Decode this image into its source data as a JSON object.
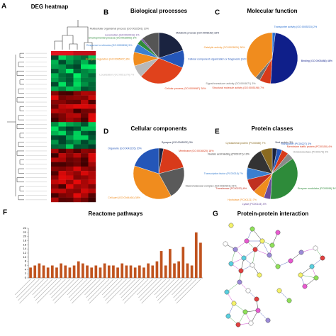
{
  "panel_letters": [
    "A",
    "B",
    "C",
    "D",
    "E",
    "F",
    "G"
  ],
  "heatmap": {
    "title": "DEG heatmap"
  },
  "network": {
    "title": "Protein-protein interaction"
  },
  "chart_data": [
    {
      "type": "pie",
      "title": "Biological processes",
      "categories": [
        "Metabolic process (GO:0008152)",
        "Cellular component organization or biogenesis (GO:0071840)",
        "Cellular process (GO:0009987)",
        "Localization (GO:0051179)",
        "Biological regulation (GO:0065007)",
        "Response to stimulus (GO:0050896)",
        "Developmental process (GO:0032502)",
        "Locomotion (GO:0040011)",
        "Multicellular organismal process (GO:0032501)"
      ],
      "values": [
        18,
        10,
        28,
        7,
        8,
        5,
        3,
        1,
        10
      ],
      "value_labels": [
        "18%",
        "10%",
        "28%",
        "7%",
        "8%",
        "5%",
        "3%",
        "1%",
        "10%"
      ],
      "colors": [
        "#1a2340",
        "#2456b8",
        "#e0421c",
        "#b8b8b8",
        "#f08c1e",
        "#3a7fd0",
        "#2e8b3a",
        "#6b4b9a",
        "#555555"
      ]
    },
    {
      "type": "pie",
      "title": "Molecular function",
      "categories": [
        "Transporter activity (GO:0005215)",
        "Binding (GO:0005488)",
        "Structural molecule activity (GO:0005198)",
        "Signal transducer activity (GO:0004871)",
        "Catalytic activity (GO:0003824)"
      ],
      "values": [
        2,
        48,
        7,
        3,
        38
      ],
      "value_labels": [
        "2%",
        "48%",
        "7%",
        "3%",
        "38%"
      ],
      "colors": [
        "#2a6fd0",
        "#0f1f8a",
        "#d83a1a",
        "#707070",
        "#f08c1e"
      ]
    },
    {
      "type": "pie",
      "title": "Cellular components",
      "categories": [
        "Synapse (GO:0045202)",
        "Membrane (GO:0016020)",
        "Macromolecular complex (GO:0032991)",
        "Cell part (GO:0044464)",
        "Organelle (GO:0043226)"
      ],
      "values": [
        3,
        18,
        21,
        38,
        20
      ],
      "value_labels": [
        "3%",
        "18%",
        "21%",
        "38%",
        "20%"
      ],
      "colors": [
        "#1a2340",
        "#d83a1a",
        "#5a5a5a",
        "#f08c1e",
        "#2456b8"
      ]
    },
    {
      "type": "pie",
      "title": "Protein classes",
      "categories": [
        "Viral protein",
        "Transporter (PC00227)",
        "Membrane traffic protein (PC00150)",
        "Oxidoreductase (PC00176)",
        "Enzyme modulator (PC00095)",
        "Lyase (PC00144)",
        "Hydrolase (PC00121)",
        "Transferase (PC00220)",
        "Transcription factor (PC00218)",
        "Nucleic acid binding (PC00171)",
        "Cytoskeletal protein (PC00085)"
      ],
      "values": [
        3,
        3,
        4,
        4,
        34,
        4,
        7,
        8,
        7,
        13,
        7
      ],
      "value_labels": [
        "3%",
        "3%",
        "4%",
        "4%",
        "34%",
        "4%",
        "7%",
        "8%",
        "7%",
        "13%",
        "7%"
      ],
      "colors": [
        "#1a2340",
        "#2456b8",
        "#d83a1a",
        "#8a8a8a",
        "#2e8b3a",
        "#6b4b9a",
        "#f08c1e",
        "#c03020",
        "#3a7fd0",
        "#333333",
        "#8a6a20"
      ]
    },
    {
      "type": "bar",
      "title": "Reactome pathways",
      "color": "#c0531e",
      "categories": [
        null,
        null,
        null,
        null,
        null,
        null,
        null,
        null,
        null,
        null,
        null,
        null,
        null,
        null,
        null,
        null,
        null,
        null,
        null,
        null,
        null,
        null,
        null,
        null,
        null,
        null,
        null,
        null,
        null,
        null,
        null,
        null,
        null,
        null,
        null,
        null,
        null,
        null,
        null,
        null
      ],
      "values": [
        5,
        6,
        7,
        6,
        5,
        6,
        5,
        7,
        6,
        5,
        6,
        8,
        7,
        6,
        5,
        6,
        5,
        7,
        6,
        6,
        5,
        7,
        6,
        6,
        5,
        6,
        5,
        7,
        6,
        8,
        13,
        6,
        14,
        7,
        8,
        15,
        7,
        6,
        22,
        17
      ],
      "ylim": [
        0,
        24
      ],
      "yticks": [
        0,
        2,
        4,
        6,
        8,
        10,
        12,
        14,
        16,
        18,
        20,
        22,
        24
      ]
    }
  ]
}
